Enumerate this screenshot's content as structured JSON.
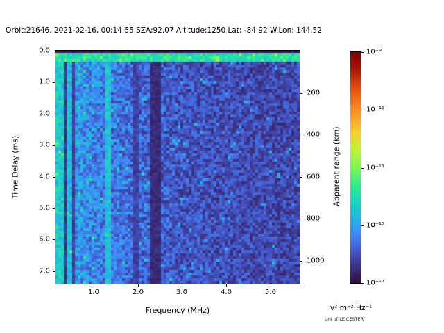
{
  "header": {
    "title": "Orbit:21646, 2021-02-16, 00:14:55 SZA:92.07 Altitude:1250 Lat: -84.92 W.Lon: 144.52"
  },
  "axes": {
    "x": {
      "label": "Frequency (MHz)",
      "ticks": [
        {
          "label": "1.0",
          "pos": 55
        },
        {
          "label": "2.0",
          "pos": 119
        },
        {
          "label": "3.0",
          "pos": 182
        },
        {
          "label": "4.0",
          "pos": 246
        },
        {
          "label": "5.0",
          "pos": 310
        }
      ]
    },
    "y_left": {
      "label": "Time Delay (ms)",
      "ticks": [
        {
          "label": "0.0",
          "pos": 0
        },
        {
          "label": "1.0",
          "pos": 45
        },
        {
          "label": "2.0",
          "pos": 91
        },
        {
          "label": "3.0",
          "pos": 136
        },
        {
          "label": "4.0",
          "pos": 182
        },
        {
          "label": "5.0",
          "pos": 227
        },
        {
          "label": "6.0",
          "pos": 272
        },
        {
          "label": "7.0",
          "pos": 318
        }
      ]
    },
    "y_right": {
      "label": "Apparent range (km)",
      "ticks": [
        {
          "label": "200",
          "pos": 61
        },
        {
          "label": "400",
          "pos": 121
        },
        {
          "label": "600",
          "pos": 182
        },
        {
          "label": "800",
          "pos": 242
        },
        {
          "label": "1000",
          "pos": 303
        }
      ]
    }
  },
  "colorbar": {
    "unit_label": "v² m⁻² Hz⁻¹",
    "scale": "log",
    "ticks": [
      {
        "label": "10⁻⁹",
        "pos": 0
      },
      {
        "label": "10⁻¹¹",
        "pos": 83
      },
      {
        "label": "10⁻¹³",
        "pos": 167
      },
      {
        "label": "10⁻¹⁵",
        "pos": 250
      },
      {
        "label": "10⁻¹⁷",
        "pos": 333
      }
    ]
  },
  "footer": {
    "credit": "Uni of LEICESTER"
  },
  "chart_data": {
    "type": "heatmap",
    "title": "Orbit:21646, 2021-02-16, 00:14:55 SZA:92.07 Altitude:1250 Lat: -84.92 W.Lon: 144.52",
    "xlabel": "Frequency (MHz)",
    "ylabel": "Time Delay (ms)",
    "y2label": "Apparent range (km)",
    "colorbar_unit": "v² m⁻² Hz⁻¹",
    "colorbar_scale": "log10",
    "colorbar_tick_exponents": [
      -9,
      -11,
      -13,
      -15,
      -17
    ],
    "x_ticks_mhz": [
      1.0,
      2.0,
      3.0,
      4.0,
      5.0
    ],
    "y_ticks_ms": [
      0.0,
      1.0,
      2.0,
      3.0,
      4.0,
      5.0,
      6.0,
      7.0
    ],
    "y2_ticks_km": [
      200,
      400,
      600,
      800,
      1000
    ],
    "xlim_mhz": [
      0.14,
      5.66
    ],
    "ylim_ms": [
      0.0,
      7.4
    ],
    "y_inverted": true,
    "features": [
      "bright cyan-green horizontal echo band near 0.2 ms delay across all frequencies",
      "bright vertical stripe at lowest frequencies (~0.2 MHz)",
      "bright cyan vertical line near 1.3 MHz",
      "dark vertical absorption band near 2.3-2.5 MHz",
      "background speckle noise, brighter (blue-cyan) at low frequency, darker (navy) at high frequency"
    ],
    "heatmap": {
      "seed": 42,
      "cols": 88,
      "rows": 84,
      "value_log10_range": [
        -17,
        -9
      ],
      "base": {
        "floor": -16.6,
        "amp": 1.15,
        "fscale": 1.5,
        "noise": 1.65,
        "speckle_prob": 0.035,
        "speckle_extra": 0.07,
        "speckle_boost": 0.9
      },
      "vstripes": [
        {
          "f0": 0.14,
          "f1": 0.3,
          "mode": "bright",
          "level": -15.2,
          "jitter": 1.3
        },
        {
          "f0": 0.3,
          "f1": 0.4,
          "mode": "dark",
          "level": -16.6,
          "jitter": 0.4
        },
        {
          "f0": 0.4,
          "f1": 0.5,
          "mode": "bright",
          "level": -15.4,
          "jitter": 1.0
        },
        {
          "f0": 0.5,
          "f1": 0.6,
          "mode": "dark",
          "level": -16.5,
          "jitter": 0.4
        },
        {
          "f0": 1.28,
          "f1": 1.38,
          "mode": "bright",
          "level": -15.0,
          "jitter": 0.9
        },
        {
          "f0": 1.9,
          "f1": 2.0,
          "mode": "dark",
          "level": -16.4,
          "jitter": 0.5
        },
        {
          "f0": 2.3,
          "f1": 2.5,
          "mode": "dark",
          "level": -16.7,
          "jitter": 0.4
        }
      ],
      "hbands": [
        {
          "d0": 0.0,
          "d1": 0.12,
          "mode": "dark",
          "level": -16.8,
          "jitter": 0.3
        },
        {
          "d0": 0.12,
          "d1": 0.34,
          "mode": "bright",
          "level": -14.5,
          "jitter": 1.1
        }
      ],
      "colormap_stops": [
        [
          0.0,
          "#30123b"
        ],
        [
          0.07,
          "#3b2f80"
        ],
        [
          0.15,
          "#455ed2"
        ],
        [
          0.22,
          "#3e8efc"
        ],
        [
          0.28,
          "#24b5e3"
        ],
        [
          0.35,
          "#1ad5c0"
        ],
        [
          0.42,
          "#2ceb8f"
        ],
        [
          0.5,
          "#7ff658"
        ],
        [
          0.58,
          "#c1f334"
        ],
        [
          0.65,
          "#f3d130"
        ],
        [
          0.75,
          "#fb8d23"
        ],
        [
          0.85,
          "#e04a0c"
        ],
        [
          0.93,
          "#a31403"
        ],
        [
          1.0,
          "#7a0403"
        ]
      ]
    }
  }
}
